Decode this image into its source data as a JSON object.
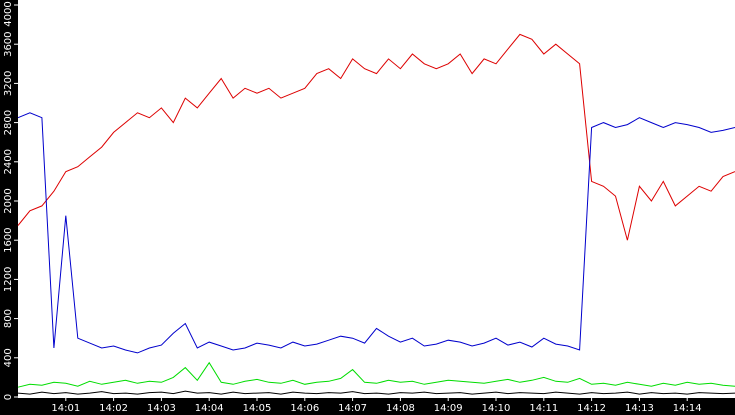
{
  "chart_data": {
    "type": "line",
    "x": [
      0,
      0.25,
      0.5,
      0.75,
      1,
      1.25,
      1.5,
      1.75,
      2,
      2.25,
      2.5,
      2.75,
      3,
      3.25,
      3.5,
      3.75,
      4,
      4.25,
      4.5,
      4.75,
      5,
      5.25,
      5.5,
      5.75,
      6,
      6.25,
      6.5,
      6.75,
      7,
      7.25,
      7.5,
      7.75,
      8,
      8.25,
      8.5,
      8.75,
      9,
      9.25,
      9.5,
      9.75,
      10,
      10.25,
      10.5,
      10.75,
      11,
      11.25,
      11.5,
      11.75,
      12,
      12.25,
      12.5,
      12.75,
      13,
      13.25,
      13.5,
      13.75,
      14,
      14.25,
      14.5,
      14.75,
      15
    ],
    "series": [
      {
        "color": "#dd0000",
        "values": [
          1750,
          1900,
          1950,
          2100,
          2300,
          2350,
          2450,
          2550,
          2700,
          2800,
          2900,
          2850,
          2950,
          2800,
          3050,
          2950,
          3100,
          3250,
          3050,
          3150,
          3100,
          3150,
          3050,
          3100,
          3150,
          3300,
          3350,
          3250,
          3450,
          3350,
          3300,
          3450,
          3350,
          3500,
          3400,
          3350,
          3400,
          3500,
          3300,
          3450,
          3400,
          3550,
          3700,
          3650,
          3500,
          3600,
          3500,
          3400,
          2200,
          2150,
          2050,
          1600,
          2150,
          2000,
          2200,
          1950,
          2050,
          2150,
          2100,
          2250,
          2300
        ]
      },
      {
        "color": "#0000cc",
        "values": [
          2850,
          2900,
          2850,
          500,
          1850,
          600,
          550,
          500,
          520,
          480,
          450,
          500,
          530,
          650,
          750,
          500,
          560,
          520,
          480,
          500,
          550,
          530,
          500,
          560,
          520,
          540,
          580,
          620,
          600,
          550,
          700,
          620,
          560,
          600,
          520,
          540,
          580,
          560,
          520,
          550,
          600,
          530,
          560,
          510,
          600,
          540,
          520,
          480,
          2750,
          2800,
          2750,
          2780,
          2850,
          2800,
          2750,
          2800,
          2780,
          2750,
          2700,
          2720,
          2750
        ]
      },
      {
        "color": "#00dd00",
        "values": [
          100,
          130,
          120,
          150,
          140,
          110,
          160,
          130,
          150,
          170,
          140,
          160,
          150,
          200,
          300,
          170,
          350,
          150,
          130,
          160,
          180,
          150,
          140,
          170,
          130,
          150,
          160,
          190,
          280,
          150,
          140,
          170,
          150,
          160,
          130,
          150,
          170,
          160,
          150,
          140,
          160,
          180,
          150,
          170,
          200,
          160,
          150,
          190,
          130,
          140,
          120,
          150,
          130,
          110,
          140,
          120,
          150,
          130,
          140,
          120,
          110
        ]
      },
      {
        "color": "#000000",
        "values": [
          40,
          30,
          50,
          35,
          45,
          30,
          40,
          55,
          35,
          40,
          30,
          45,
          50,
          35,
          60,
          40,
          45,
          30,
          50,
          35,
          40,
          45,
          30,
          50,
          40,
          35,
          45,
          40,
          55,
          35,
          40,
          30,
          45,
          40,
          50,
          35,
          40,
          45,
          30,
          40,
          50,
          35,
          45,
          40,
          35,
          50,
          40,
          30,
          45,
          35,
          40,
          50,
          30,
          45,
          35,
          40,
          30,
          45,
          40,
          35,
          40
        ]
      }
    ],
    "xlim": [
      0,
      15
    ],
    "ylim": [
      0,
      4000
    ],
    "xticks": [
      {
        "value": 1,
        "label": "14:01"
      },
      {
        "value": 2,
        "label": "14:02"
      },
      {
        "value": 3,
        "label": "14:03"
      },
      {
        "value": 4,
        "label": "14:04"
      },
      {
        "value": 5,
        "label": "14:05"
      },
      {
        "value": 6,
        "label": "14:06"
      },
      {
        "value": 7,
        "label": "14:07"
      },
      {
        "value": 8,
        "label": "14:08"
      },
      {
        "value": 9,
        "label": "14:09"
      },
      {
        "value": 10,
        "label": "14:10"
      },
      {
        "value": 11,
        "label": "14:11"
      },
      {
        "value": 12,
        "label": "14:12"
      },
      {
        "value": 13,
        "label": "14:13"
      },
      {
        "value": 14,
        "label": "14:14"
      }
    ],
    "yticks": [
      0,
      400,
      800,
      1200,
      1600,
      2000,
      2400,
      2800,
      3200,
      3600,
      4000
    ]
  }
}
